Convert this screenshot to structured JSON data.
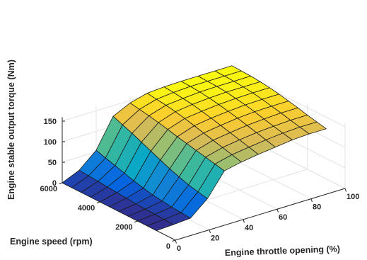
{
  "chart_data": {
    "type": "surface",
    "title": "",
    "xlabel": "Engine throttle opening (%)",
    "ylabel": "Engine speed (rpm)",
    "zlabel": "Engine stable output torque (Nm)",
    "xlim": [
      0,
      100
    ],
    "ylim": [
      0,
      6000
    ],
    "zlim": [
      0,
      160
    ],
    "x_ticks": [
      "0",
      "20",
      "40",
      "60",
      "80",
      "100"
    ],
    "y_ticks": [
      "0",
      "2000",
      "4000",
      "6000"
    ],
    "z_ticks": [
      "0",
      "50",
      "100",
      "150"
    ],
    "grid": true,
    "colormap": "parula",
    "x": [
      0,
      10,
      20,
      30,
      40,
      50,
      60,
      70,
      80,
      90,
      100
    ],
    "y": [
      1000,
      1500,
      2000,
      2500,
      3000,
      3500,
      4000,
      4500,
      5000,
      5500,
      6000
    ],
    "z": [
      [
        0,
        2,
        5,
        40,
        95,
        104,
        110,
        115,
        120,
        122,
        122
      ],
      [
        0,
        3,
        7,
        45,
        100,
        110,
        116,
        121,
        125,
        127,
        127
      ],
      [
        0,
        4,
        9,
        50,
        105,
        116,
        122,
        127,
        130,
        132,
        132
      ],
      [
        0,
        5,
        12,
        58,
        110,
        122,
        128,
        133,
        136,
        138,
        138
      ],
      [
        0,
        6,
        15,
        66,
        115,
        128,
        134,
        139,
        142,
        143,
        143
      ],
      [
        0,
        8,
        20,
        76,
        120,
        134,
        140,
        144,
        147,
        148,
        148
      ],
      [
        0,
        10,
        26,
        86,
        126,
        140,
        145,
        149,
        151,
        152,
        152
      ],
      [
        0,
        12,
        33,
        96,
        131,
        145,
        150,
        153,
        155,
        155,
        155
      ],
      [
        0,
        14,
        40,
        106,
        136,
        149,
        153,
        156,
        157,
        157,
        157
      ],
      [
        0,
        16,
        47,
        115,
        140,
        152,
        156,
        158,
        158,
        158,
        158
      ],
      [
        0,
        18,
        54,
        124,
        144,
        155,
        158,
        159,
        159,
        159,
        159
      ]
    ]
  }
}
